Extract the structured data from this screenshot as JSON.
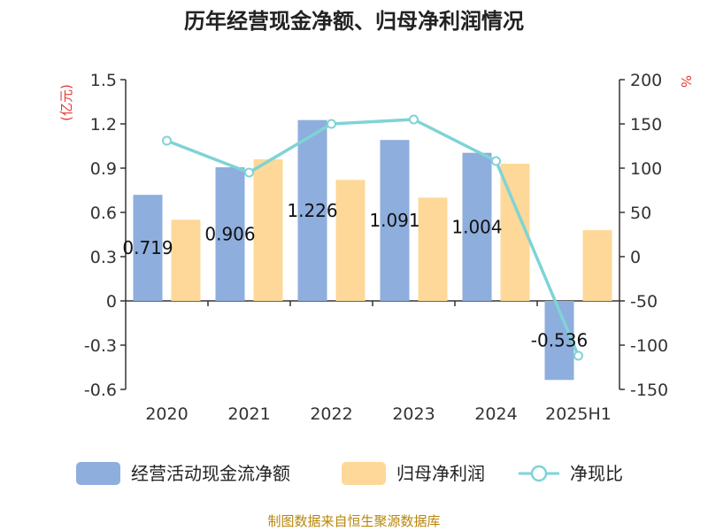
{
  "chart_data": {
    "type": "bar",
    "title": "历年经营现金净额、归母净利润情况",
    "categories": [
      "2020",
      "2021",
      "2022",
      "2023",
      "2024",
      "2025H1"
    ],
    "series": [
      {
        "name": "经营活动现金流净额",
        "axis": "left",
        "kind": "bar",
        "color": "#8eaedd",
        "values": [
          0.719,
          0.906,
          1.226,
          1.091,
          1.004,
          -0.536
        ]
      },
      {
        "name": "归母净利润",
        "axis": "left",
        "kind": "bar",
        "color": "#fdd898",
        "values": [
          0.55,
          0.96,
          0.82,
          0.7,
          0.93,
          0.48
        ]
      },
      {
        "name": "净现比",
        "axis": "right",
        "kind": "line",
        "color": "#7fd3d6",
        "values": [
          131,
          95,
          150,
          155,
          108,
          -112
        ]
      }
    ],
    "data_labels": [
      "0.719",
      "0.906",
      "1.226",
      "1.091",
      "1.004",
      "-0.536"
    ],
    "y_left": {
      "unit": "(亿元)",
      "ylim": [
        -0.6,
        1.5
      ],
      "ticks": [
        "1.5",
        "1.2",
        "0.9",
        "0.6",
        "0.3",
        "0",
        "-0.3",
        "-0.6"
      ]
    },
    "y_right": {
      "unit": "%",
      "ylim": [
        -150,
        200
      ],
      "ticks": [
        "200",
        "150",
        "100",
        "50",
        "0",
        "-50",
        "-100",
        "-150"
      ]
    },
    "grid": false,
    "legend_position": "bottom"
  },
  "source": "制图数据来自恒生聚源数据库"
}
